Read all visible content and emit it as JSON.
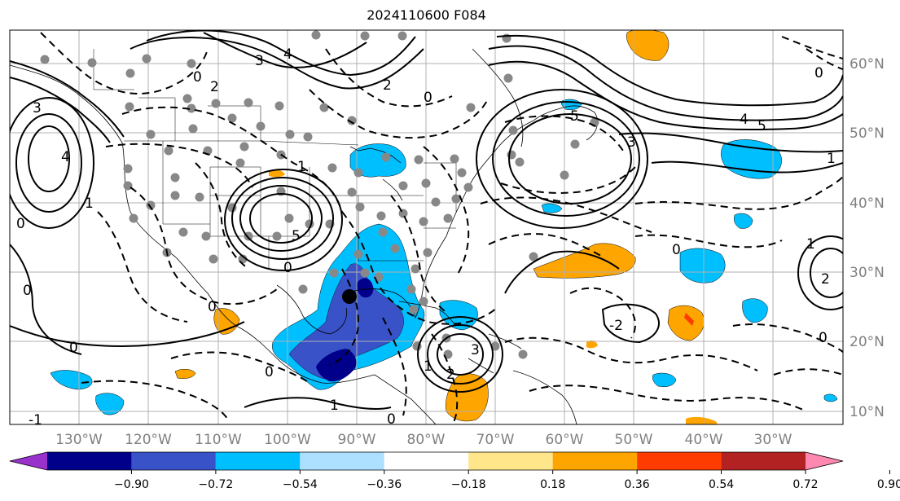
{
  "title": "2024110600 F084",
  "map": {
    "lon_labels": [
      "130°W",
      "120°W",
      "110°W",
      "100°W",
      "90°W",
      "80°W",
      "70°W",
      "60°W",
      "50°W",
      "40°W",
      "30°W"
    ],
    "lat_labels": [
      "60°N",
      "50°N",
      "40°N",
      "30°N",
      "20°N",
      "10°N"
    ],
    "contour_labels": [
      "0",
      "1",
      "2",
      "3",
      "4",
      "5",
      "-1",
      "-2"
    ],
    "marker": "storm-center-dot",
    "colors": {
      "contour": "#000000",
      "grid": "#b0b0b0",
      "station_dot": "#888888",
      "axis_label": "#808080"
    }
  },
  "colorbar": {
    "ticks": [
      "−0.90",
      "−0.72",
      "−0.54",
      "−0.36",
      "−0.18",
      "0.18",
      "0.36",
      "0.54",
      "0.72",
      "0.90"
    ],
    "colors": [
      "#9932CC",
      "#00008B",
      "#3A52C8",
      "#00BFFF",
      "#ADDFFF",
      "#FFFFFF",
      "#FFE68A",
      "#FFA500",
      "#FF3C00",
      "#B22222",
      "#FF88B0"
    ]
  }
}
